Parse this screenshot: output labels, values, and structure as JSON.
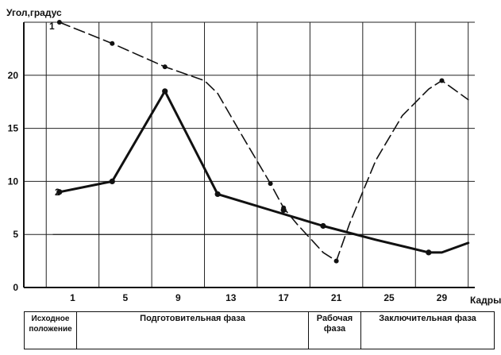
{
  "chart_data": {
    "type": "line",
    "ylabel": "Угол,градус",
    "xlabel": "Кадры",
    "x_ticks": [
      1,
      5,
      9,
      13,
      17,
      21,
      25,
      29
    ],
    "x_tick_labels": [
      "1",
      "5",
      "9",
      "13",
      "17",
      "21",
      "25",
      "29"
    ],
    "y_ticks": [
      0,
      5,
      10,
      15,
      20
    ],
    "y_tick_labels": [
      "0",
      "5",
      "10",
      "15",
      "20"
    ],
    "xlim": [
      -2.7,
      31.5
    ],
    "ylim": [
      0,
      25
    ],
    "grid": true,
    "series": [
      {
        "name": "1",
        "style": "dashed",
        "x": [
          0,
          4,
          8,
          11,
          12,
          14,
          16,
          17,
          18,
          20,
          21,
          22,
          24,
          26,
          28,
          29,
          31
        ],
        "y": [
          25,
          23,
          20.8,
          19.5,
          18.3,
          14,
          9.8,
          7.5,
          6,
          3.3,
          2.5,
          6,
          12,
          16.2,
          18.7,
          19.5,
          17.7
        ],
        "markers_x": [
          0,
          4,
          8,
          16,
          17,
          21,
          29
        ],
        "markers_y": [
          25,
          23,
          20.8,
          9.8,
          7.5,
          2.5,
          19.5
        ]
      },
      {
        "name": "2",
        "style": "solid",
        "x": [
          0,
          4,
          8,
          12,
          16,
          20,
          24,
          28,
          29,
          31
        ],
        "y": [
          9,
          10,
          18.5,
          8.8,
          7.3,
          5.8,
          4.5,
          3.3,
          3.3,
          4.2
        ],
        "markers_x": [
          0,
          4,
          8,
          12,
          17,
          20,
          28
        ],
        "markers_y": [
          9,
          10,
          18.5,
          8.8,
          7.3,
          5.8,
          3.3
        ]
      }
    ],
    "thin_line": {
      "x": [
        -0.5,
        31
      ],
      "y": [
        5,
        5
      ]
    }
  },
  "phases": [
    {
      "label": "Исходное положение"
    },
    {
      "label": "Подготовительная фаза"
    },
    {
      "label": "Рабочая фаза"
    },
    {
      "label": "Заключительная фаза"
    }
  ]
}
